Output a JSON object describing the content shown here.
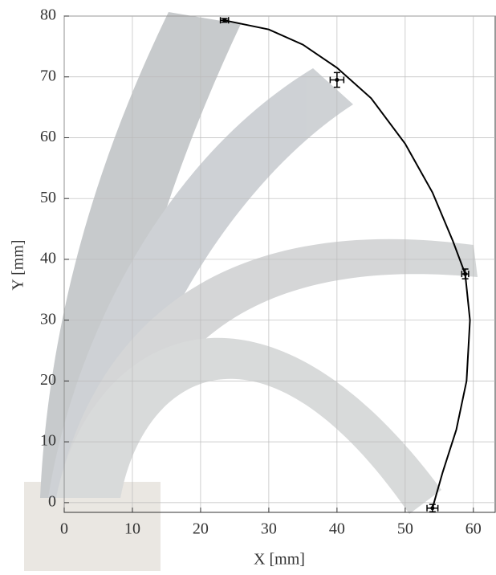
{
  "chart_data": {
    "type": "scatter",
    "xlabel": "X [mm]",
    "ylabel": "Y [mm]",
    "xlim": [
      0,
      63.2
    ],
    "ylim": [
      -1.6,
      80
    ],
    "xticks": [
      0,
      10,
      20,
      30,
      40,
      50,
      60
    ],
    "yticks": [
      0,
      10,
      20,
      30,
      40,
      50,
      60,
      70,
      80
    ],
    "grid": true,
    "color": "#000000",
    "points": {
      "x": [
        23.5,
        40,
        58.8,
        54
      ],
      "y": [
        79.3,
        69.5,
        37.6,
        -0.9
      ],
      "xerr": [
        0.6,
        1.0,
        0.5,
        0.8
      ],
      "yerr": [
        0.3,
        1.2,
        0.8,
        0.6
      ]
    },
    "curve": {
      "x": [
        23.5,
        30,
        35,
        40,
        45,
        50,
        54,
        57,
        58.8,
        59.5,
        59,
        57.5,
        55.5,
        54
      ],
      "y": [
        79.3,
        77.8,
        75.3,
        71.5,
        66.5,
        59,
        51,
        43,
        37.6,
        30,
        20,
        12,
        5,
        -0.9
      ]
    }
  }
}
